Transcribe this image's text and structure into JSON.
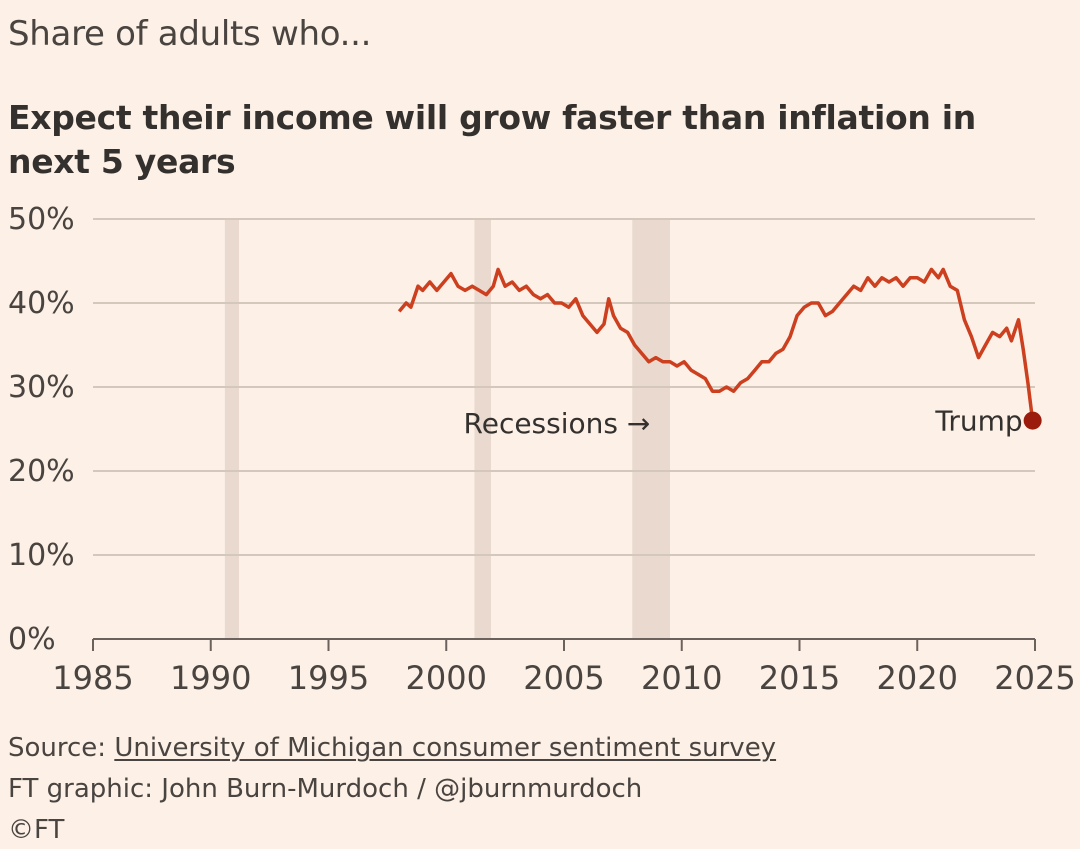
{
  "kicker": "Share of adults who...",
  "footer": {
    "source_prefix": "Source: ",
    "source_link": "University of Michigan consumer sentiment survey",
    "credit": "FT graphic: John Burn-Murdoch / @jburnmurdoch",
    "copyright": "©FT"
  },
  "colors": {
    "background": "#fdf0e6",
    "line": "#cc3f1f",
    "marker": "#9b1c0c",
    "recession": "#e9d9ce",
    "grid": "#d4c7bc",
    "axis": "#6b625d"
  },
  "chart_data": {
    "type": "line",
    "title": "Expect their income will grow faster than inflation in next 5 years",
    "xlim": [
      1985,
      2025
    ],
    "ylim": [
      0,
      50
    ],
    "x_ticks": [
      "1985",
      "1990",
      "1995",
      "2000",
      "2005",
      "2010",
      "2015",
      "2020",
      "2025"
    ],
    "y_ticks": [
      "0%",
      "10%",
      "20%",
      "30%",
      "40%",
      "50%"
    ],
    "grid": true,
    "recessions": [
      [
        1990.6,
        1991.2
      ],
      [
        2001.2,
        2001.9
      ],
      [
        2007.9,
        2009.5
      ]
    ],
    "series": [
      {
        "values": [
          [
            1998.0,
            39
          ],
          [
            1998.3,
            40
          ],
          [
            1998.5,
            39.5
          ],
          [
            1998.8,
            42
          ],
          [
            1999.0,
            41.5
          ],
          [
            1999.3,
            42.5
          ],
          [
            1999.6,
            41.5
          ],
          [
            1999.9,
            42.5
          ],
          [
            2000.2,
            43.5
          ],
          [
            2000.5,
            42
          ],
          [
            2000.8,
            41.5
          ],
          [
            2001.1,
            42
          ],
          [
            2001.4,
            41.5
          ],
          [
            2001.7,
            41
          ],
          [
            2002.0,
            42
          ],
          [
            2002.2,
            44
          ],
          [
            2002.5,
            42
          ],
          [
            2002.8,
            42.5
          ],
          [
            2003.1,
            41.5
          ],
          [
            2003.4,
            42
          ],
          [
            2003.7,
            41
          ],
          [
            2004.0,
            40.5
          ],
          [
            2004.3,
            41
          ],
          [
            2004.6,
            40
          ],
          [
            2004.9,
            40
          ],
          [
            2005.2,
            39.5
          ],
          [
            2005.5,
            40.5
          ],
          [
            2005.8,
            38.5
          ],
          [
            2006.1,
            37.5
          ],
          [
            2006.4,
            36.5
          ],
          [
            2006.7,
            37.5
          ],
          [
            2006.9,
            40.5
          ],
          [
            2007.1,
            38.5
          ],
          [
            2007.4,
            37
          ],
          [
            2007.7,
            36.5
          ],
          [
            2008.0,
            35
          ],
          [
            2008.3,
            34
          ],
          [
            2008.6,
            33
          ],
          [
            2008.9,
            33.5
          ],
          [
            2009.2,
            33
          ],
          [
            2009.5,
            33
          ],
          [
            2009.8,
            32.5
          ],
          [
            2010.1,
            33
          ],
          [
            2010.4,
            32
          ],
          [
            2010.7,
            31.5
          ],
          [
            2011.0,
            31
          ],
          [
            2011.3,
            29.5
          ],
          [
            2011.6,
            29.5
          ],
          [
            2011.9,
            30
          ],
          [
            2012.2,
            29.5
          ],
          [
            2012.5,
            30.5
          ],
          [
            2012.8,
            31
          ],
          [
            2013.1,
            32
          ],
          [
            2013.4,
            33
          ],
          [
            2013.7,
            33
          ],
          [
            2014.0,
            34
          ],
          [
            2014.3,
            34.5
          ],
          [
            2014.6,
            36
          ],
          [
            2014.9,
            38.5
          ],
          [
            2015.2,
            39.5
          ],
          [
            2015.5,
            40
          ],
          [
            2015.8,
            40
          ],
          [
            2016.1,
            38.5
          ],
          [
            2016.4,
            39
          ],
          [
            2016.7,
            40
          ],
          [
            2017.0,
            41
          ],
          [
            2017.3,
            42
          ],
          [
            2017.6,
            41.5
          ],
          [
            2017.9,
            43
          ],
          [
            2018.2,
            42
          ],
          [
            2018.5,
            43
          ],
          [
            2018.8,
            42.5
          ],
          [
            2019.1,
            43
          ],
          [
            2019.4,
            42
          ],
          [
            2019.7,
            43
          ],
          [
            2020.0,
            43
          ],
          [
            2020.3,
            42.5
          ],
          [
            2020.6,
            44
          ],
          [
            2020.9,
            43
          ],
          [
            2021.1,
            44
          ],
          [
            2021.4,
            42
          ],
          [
            2021.7,
            41.5
          ],
          [
            2022.0,
            38
          ],
          [
            2022.3,
            36
          ],
          [
            2022.6,
            33.5
          ],
          [
            2022.9,
            35
          ],
          [
            2023.2,
            36.5
          ],
          [
            2023.5,
            36
          ],
          [
            2023.8,
            37
          ],
          [
            2024.0,
            35.5
          ],
          [
            2024.3,
            38
          ],
          [
            2024.5,
            34.5
          ],
          [
            2024.7,
            30.5
          ],
          [
            2024.9,
            26
          ]
        ]
      }
    ],
    "annotations": {
      "recessions_label": "Recessions →",
      "trump_label": "Trump"
    }
  }
}
